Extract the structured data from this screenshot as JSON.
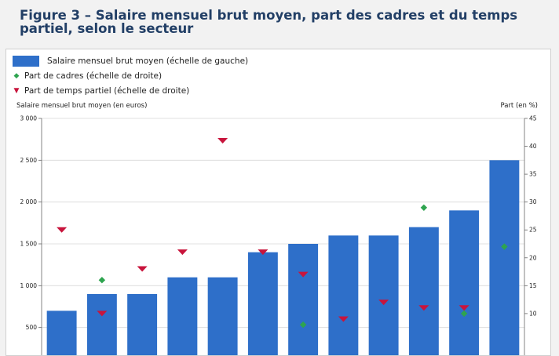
{
  "figure_title": "Figure 3 – Salaire mensuel brut moyen, part des cadres et du temps partiel, selon le secteur",
  "colors": {
    "title": "#223f66",
    "bars": "#2e6fc9",
    "cadres": "#2ea44f",
    "temps_partiel": "#c8143c"
  },
  "legend": [
    {
      "label": "Salaire mensuel brut moyen (échelle de gauche)",
      "marker": "bar"
    },
    {
      "label": "Part de cadres (échelle de droite)",
      "marker": "diamond"
    },
    {
      "label": "Part de temps partiel (échelle de droite)",
      "marker": "triangle-down"
    }
  ],
  "chart_data": {
    "type": "bar",
    "ylabel_left": "Salaire mensuel brut moyen (en euros)",
    "ylabel_right": "Part (en %)",
    "ylim_left": [
      0,
      3000
    ],
    "ylim_right": [
      0,
      45
    ],
    "yticks_left": [
      "3 000",
      "2 500",
      "2 000",
      "1 500",
      "1 000",
      "500"
    ],
    "yticks_right": [
      "45",
      "40",
      "35",
      "30",
      "25",
      "20",
      "15",
      "10"
    ],
    "grid": "horizontal",
    "series": [
      {
        "name": "Salaire mensuel brut moyen (échelle de gauche)",
        "kind": "bar",
        "axis": "left",
        "values": [
          700,
          900,
          900,
          1100,
          1100,
          1400,
          1500,
          1600,
          1600,
          1700,
          1900,
          2500
        ]
      },
      {
        "name": "Part de cadres (échelle de droite)",
        "kind": "diamond",
        "axis": "right",
        "values": [
          null,
          16,
          null,
          null,
          null,
          null,
          8,
          null,
          null,
          29,
          10,
          22
        ]
      },
      {
        "name": "Part de temps partiel (échelle de droite)",
        "kind": "triangle-down",
        "axis": "right",
        "values": [
          25,
          10,
          18,
          21,
          41,
          21,
          17,
          9,
          12,
          11,
          11,
          null
        ]
      }
    ]
  }
}
